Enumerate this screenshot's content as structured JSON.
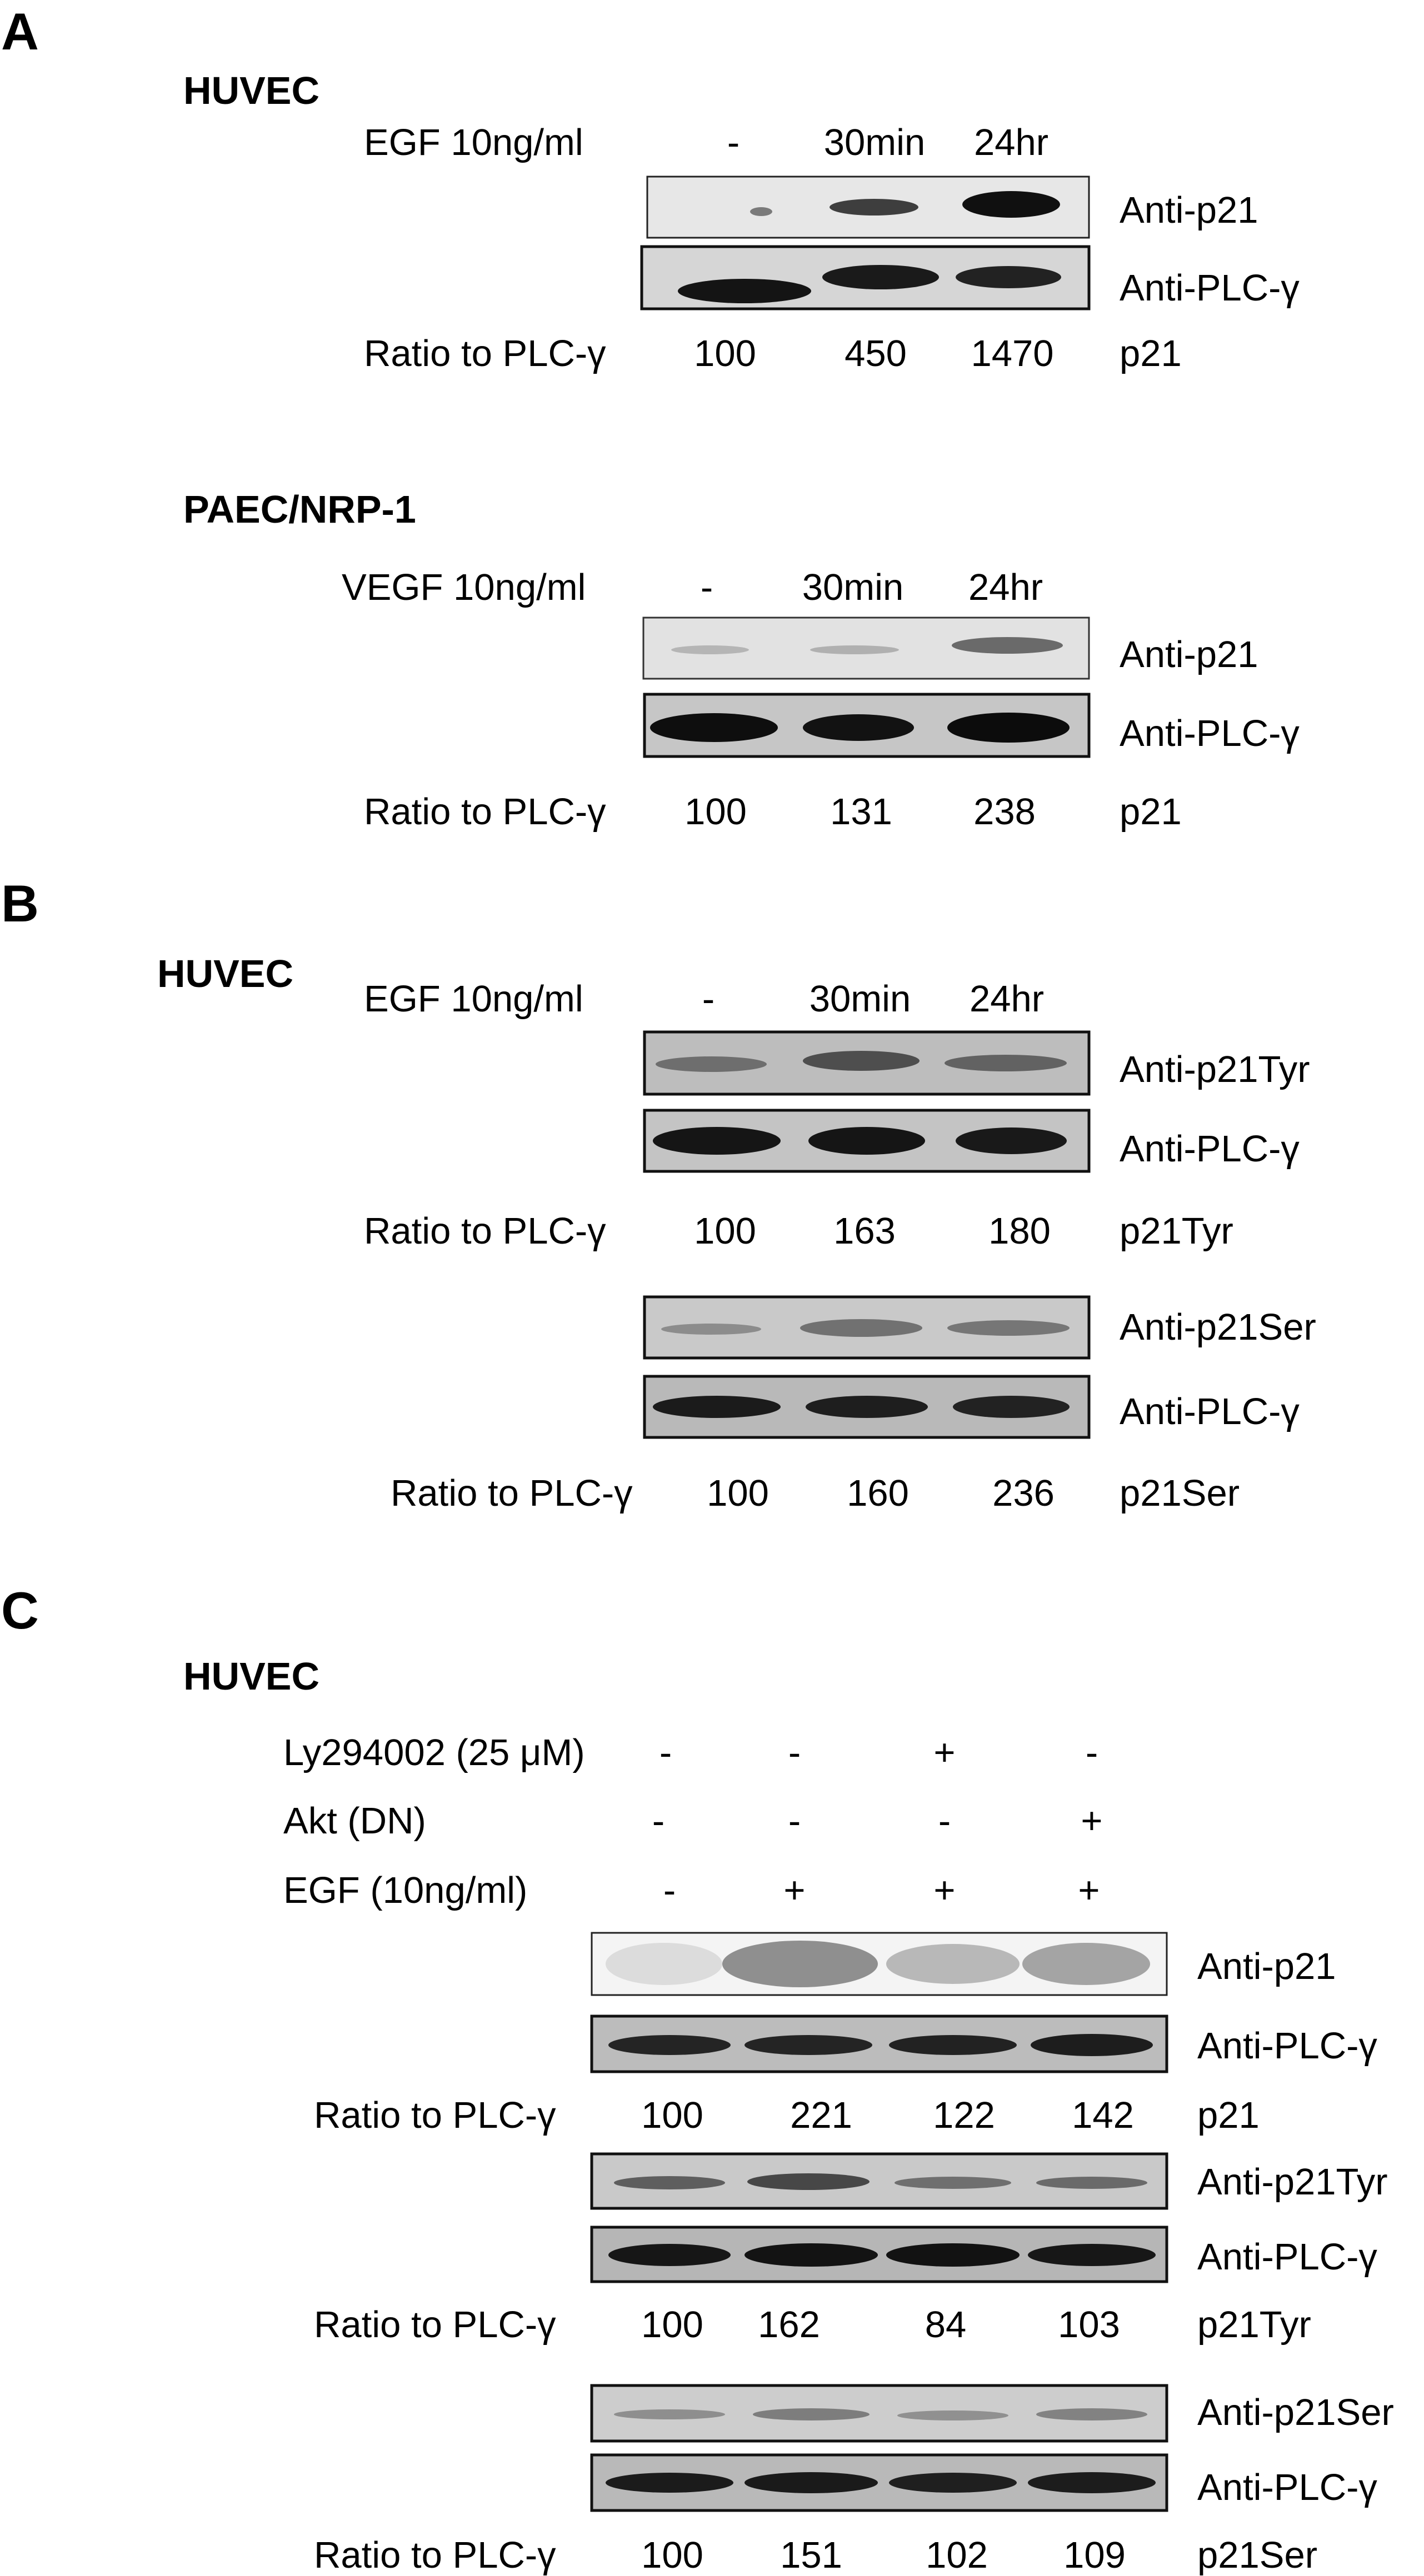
{
  "figure": {
    "panels": [
      {
        "letter": "A",
        "blocks": [
          {
            "cell_line": "HUVEC",
            "treatment": "EGF 10ng/ml",
            "lanes": [
              "-",
              "30min",
              "24hr"
            ],
            "blots": [
              "Anti-p21",
              "Anti-PLC-γ"
            ],
            "ratio_label": "Ratio to PLC-γ",
            "ratio_values": [
              "100",
              "450",
              "1470"
            ],
            "ratio_target": "p21"
          },
          {
            "cell_line": "PAEC/NRP-1",
            "treatment": "VEGF 10ng/ml",
            "lanes": [
              "-",
              "30min",
              "24hr"
            ],
            "blots": [
              "Anti-p21",
              "Anti-PLC-γ"
            ],
            "ratio_label": "Ratio to PLC-γ",
            "ratio_values": [
              "100",
              "131",
              "238"
            ],
            "ratio_target": "p21"
          }
        ]
      },
      {
        "letter": "B",
        "cell_line": "HUVEC",
        "treatment": "EGF 10ng/ml",
        "lanes": [
          "-",
          "30min",
          "24hr"
        ],
        "groups": [
          {
            "blots": [
              "Anti-p21Tyr",
              "Anti-PLC-γ"
            ],
            "ratio_label": "Ratio to PLC-γ",
            "ratio_values": [
              "100",
              "163",
              "180"
            ],
            "ratio_target": "p21Tyr"
          },
          {
            "blots": [
              "Anti-p21Ser",
              "Anti-PLC-γ"
            ],
            "ratio_label": "Ratio to PLC-γ",
            "ratio_values": [
              "100",
              "160",
              "236"
            ],
            "ratio_target": "p21Ser"
          }
        ]
      },
      {
        "letter": "C",
        "cell_line": "HUVEC",
        "conditions": [
          {
            "label": "Ly294002 (25 μM)",
            "values": [
              "-",
              "-",
              "+",
              "-"
            ]
          },
          {
            "label": "Akt (DN)",
            "values": [
              "-",
              "-",
              "-",
              "+"
            ]
          },
          {
            "label": "EGF (10ng/ml)",
            "values": [
              "-",
              "+",
              "+",
              "+"
            ]
          }
        ],
        "groups": [
          {
            "blots": [
              "Anti-p21",
              "Anti-PLC-γ"
            ],
            "ratio_label": "Ratio to PLC-γ",
            "ratio_values": [
              "100",
              "221",
              "122",
              "142"
            ],
            "ratio_target": "p21"
          },
          {
            "blots": [
              "Anti-p21Tyr",
              "Anti-PLC-γ"
            ],
            "ratio_label": "Ratio to PLC-γ",
            "ratio_values": [
              "100",
              "162",
              "84",
              "103"
            ],
            "ratio_target": "p21Tyr"
          },
          {
            "blots": [
              "Anti-p21Ser",
              "Anti-PLC-γ"
            ],
            "ratio_label": "Ratio to PLC-γ",
            "ratio_values": [
              "100",
              "151",
              "102",
              "109"
            ],
            "ratio_target": "p21Ser"
          }
        ]
      }
    ]
  },
  "colors": {
    "text": "#000000",
    "blot_background": "#c8c8c8",
    "band": "#2b2b2b"
  }
}
